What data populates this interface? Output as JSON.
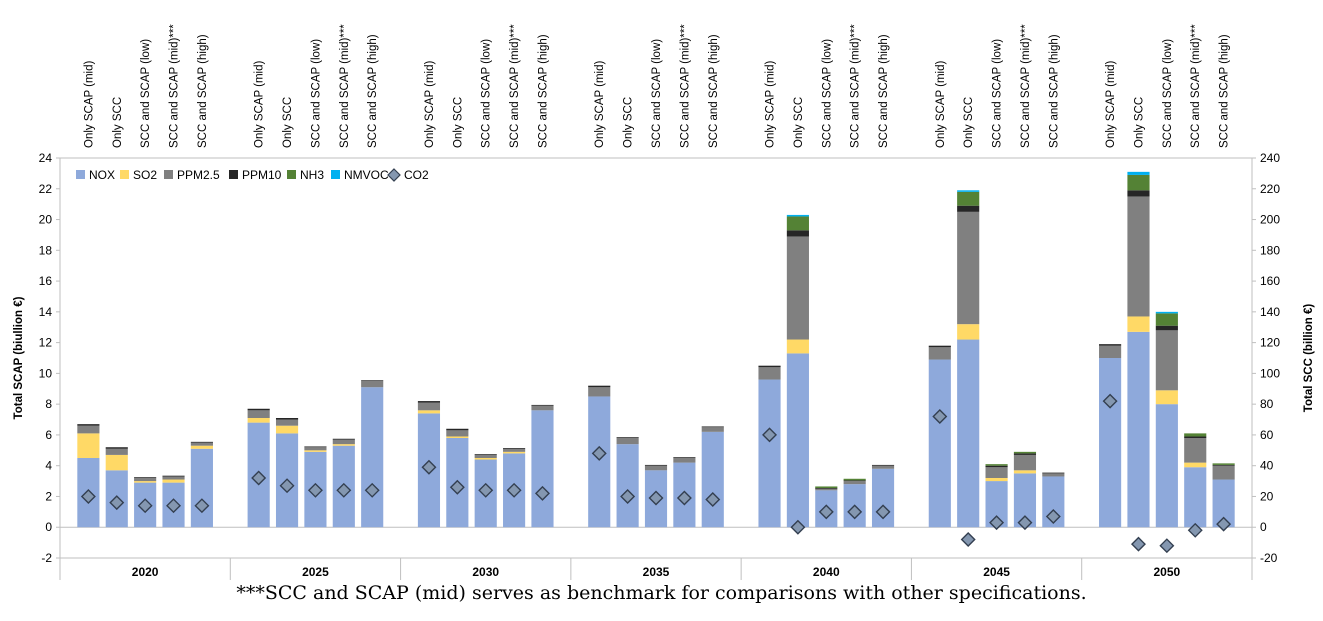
{
  "chart_data": {
    "type": "bar",
    "stacked": true,
    "ylabel": "Total SCAP (biullion €)",
    "y2label": "Total SCC (billion €)",
    "ylim": [
      -2,
      24
    ],
    "y2lim": [
      -20,
      240
    ],
    "yticks": [
      "-2",
      "0",
      "2",
      "4",
      "6",
      "8",
      "10",
      "12",
      "14",
      "16",
      "18",
      "20",
      "22",
      "24"
    ],
    "y2ticks": [
      "-20",
      "0",
      "20",
      "40",
      "60",
      "80",
      "100",
      "120",
      "140",
      "160",
      "180",
      "200",
      "220",
      "240"
    ],
    "legend_position": "top-left",
    "grid": false,
    "groups": [
      "2020",
      "2025",
      "2030",
      "2035",
      "2040",
      "2045",
      "2050"
    ],
    "scenarios": [
      "Only SCAP (mid)",
      "Only SCC",
      "SCC and SCAP (low)",
      "SCC and SCAP (mid)***",
      "SCC and SCAP (high)"
    ],
    "series": [
      {
        "name": "NOX",
        "color": "#8EA9DB",
        "values": [
          [
            4.5,
            3.7,
            2.9,
            2.9,
            5.1
          ],
          [
            6.8,
            6.1,
            4.9,
            5.3,
            9.1
          ],
          [
            7.4,
            5.8,
            4.4,
            4.8,
            7.6
          ],
          [
            8.5,
            5.4,
            3.7,
            4.2,
            6.2
          ],
          [
            9.6,
            11.3,
            2.4,
            2.8,
            3.8
          ],
          [
            10.9,
            12.2,
            3.0,
            3.5,
            3.3
          ],
          [
            11.0,
            12.7,
            8.0,
            3.9,
            3.1
          ]
        ]
      },
      {
        "name": "SO2",
        "color": "#FFD966",
        "values": [
          [
            1.6,
            1.0,
            0.1,
            0.2,
            0.2
          ],
          [
            0.3,
            0.5,
            0.1,
            0.1,
            0.0
          ],
          [
            0.2,
            0.1,
            0.1,
            0.1,
            0.0
          ],
          [
            0.0,
            0.0,
            0.0,
            0.0,
            0.0
          ],
          [
            0.0,
            0.9,
            0.0,
            0.0,
            0.0
          ],
          [
            0.0,
            1.0,
            0.2,
            0.2,
            0.0
          ],
          [
            0.0,
            1.0,
            0.9,
            0.3,
            0.0
          ]
        ]
      },
      {
        "name": "PPM2.5",
        "color": "#808080",
        "values": [
          [
            0.5,
            0.4,
            0.2,
            0.2,
            0.2
          ],
          [
            0.5,
            0.4,
            0.2,
            0.3,
            0.4
          ],
          [
            0.5,
            0.4,
            0.2,
            0.2,
            0.3
          ],
          [
            0.6,
            0.4,
            0.3,
            0.3,
            0.3
          ],
          [
            0.8,
            6.7,
            0.1,
            0.2,
            0.2
          ],
          [
            0.8,
            7.3,
            0.7,
            1.0,
            0.2
          ],
          [
            0.8,
            7.8,
            3.9,
            1.6,
            0.9
          ]
        ]
      },
      {
        "name": "PPM10",
        "color": "#262626",
        "values": [
          [
            0.1,
            0.1,
            0.05,
            0.05,
            0.05
          ],
          [
            0.1,
            0.1,
            0.05,
            0.05,
            0.05
          ],
          [
            0.1,
            0.1,
            0.05,
            0.05,
            0.05
          ],
          [
            0.1,
            0.05,
            0.05,
            0.05,
            0.05
          ],
          [
            0.1,
            0.4,
            0.05,
            0.05,
            0.05
          ],
          [
            0.1,
            0.4,
            0.1,
            0.1,
            0.05
          ],
          [
            0.1,
            0.4,
            0.3,
            0.1,
            0.05
          ]
        ]
      },
      {
        "name": "NH3",
        "color": "#548235",
        "values": [
          [
            0.0,
            0.0,
            0.0,
            0.0,
            0.0
          ],
          [
            0.0,
            0.0,
            0.0,
            0.0,
            0.0
          ],
          [
            0.0,
            0.0,
            0.0,
            0.0,
            0.0
          ],
          [
            0.0,
            0.0,
            0.0,
            0.0,
            0.0
          ],
          [
            0.0,
            0.9,
            0.1,
            0.1,
            0.0
          ],
          [
            0.0,
            0.9,
            0.1,
            0.1,
            0.0
          ],
          [
            0.0,
            1.0,
            0.8,
            0.2,
            0.1
          ]
        ]
      },
      {
        "name": "NMVOC",
        "color": "#00B0F0",
        "values": [
          [
            0.0,
            0.0,
            0.0,
            0.0,
            0.0
          ],
          [
            0.0,
            0.0,
            0.0,
            0.0,
            0.0
          ],
          [
            0.0,
            0.0,
            0.0,
            0.0,
            0.0
          ],
          [
            0.0,
            0.0,
            0.0,
            0.0,
            0.0
          ],
          [
            0.0,
            0.1,
            0.0,
            0.0,
            0.0
          ],
          [
            0.0,
            0.1,
            0.0,
            0.0,
            0.0
          ],
          [
            0.0,
            0.2,
            0.1,
            0.0,
            0.0
          ]
        ]
      }
    ],
    "co2": {
      "name": "CO2",
      "axis": "secondary",
      "color": "#8497B0",
      "values": [
        [
          20,
          16,
          14,
          14,
          14
        ],
        [
          32,
          27,
          24,
          24,
          24
        ],
        [
          39,
          26,
          24,
          24,
          22
        ],
        [
          48,
          20,
          19,
          19,
          18
        ],
        [
          60,
          0,
          10,
          10,
          10
        ],
        [
          72,
          -8,
          3,
          3,
          7
        ],
        [
          82,
          -11,
          -12,
          -2,
          2
        ]
      ]
    }
  },
  "caption": "***SCC and SCAP (mid) serves as benchmark for comparisons with other specifications."
}
